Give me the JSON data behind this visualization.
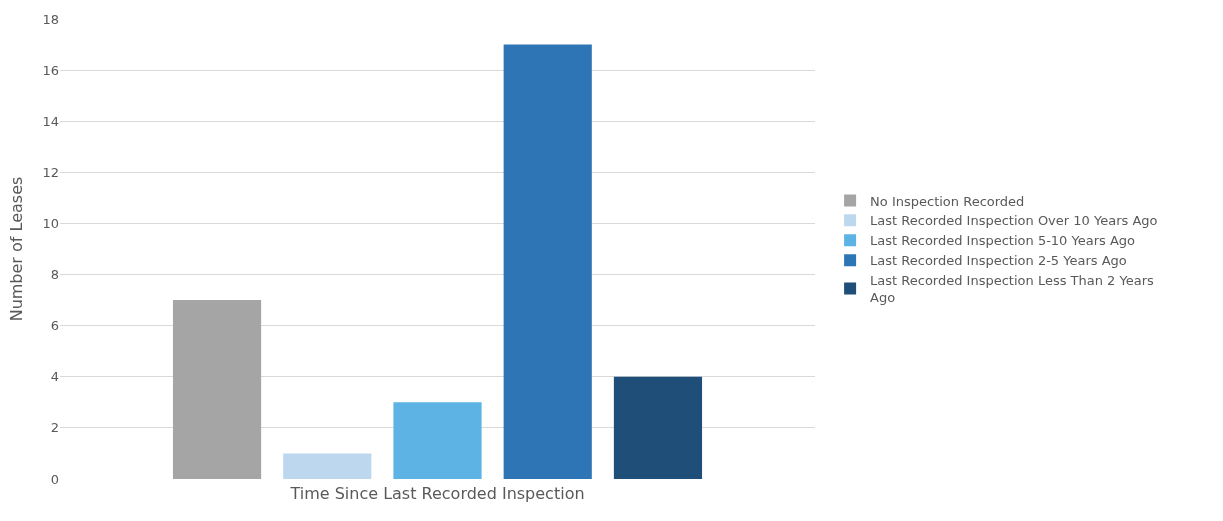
{
  "chart_data": {
    "type": "bar",
    "xlabel": "Time Since Last Recorded Inspection",
    "ylabel": "Number of Leases",
    "categories": [
      null
    ],
    "series": [
      {
        "name": "No Inspection Recorded",
        "color": "#a5a5a5",
        "values": [
          7
        ]
      },
      {
        "name": "Last Recorded Inspection Over 10 Years Ago",
        "color": "#bdd7ee",
        "values": [
          1
        ]
      },
      {
        "name": "Last Recorded Inspection 5-10 Years Ago",
        "color": "#5cb3e4",
        "values": [
          3
        ]
      },
      {
        "name": "Last Recorded Inspection 2-5 Years Ago",
        "color": "#2e75b6",
        "values": [
          17
        ]
      },
      {
        "name": "Last Recorded Inspection Less Than 2 Years Ago",
        "color": "#1f4e79",
        "values": [
          4
        ]
      }
    ],
    "ylim": [
      0,
      18
    ],
    "yticks": [
      0,
      2,
      4,
      6,
      8,
      10,
      12,
      14,
      16,
      18
    ],
    "grid": "y",
    "legend": "right"
  }
}
